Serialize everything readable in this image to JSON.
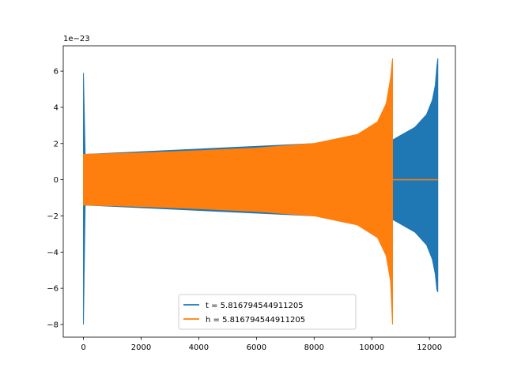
{
  "chart_data": {
    "type": "line",
    "title": "",
    "xlabel": "",
    "ylabel": "",
    "scale_offset_label": "1e−23",
    "xlim": [
      -700,
      12900
    ],
    "ylim": [
      -8.7,
      7.4
    ],
    "xticks": [
      0,
      2000,
      4000,
      6000,
      8000,
      10000,
      12000
    ],
    "xtick_labels": [
      "0",
      "2000",
      "4000",
      "6000",
      "8000",
      "10000",
      "12000"
    ],
    "yticks": [
      -8,
      -6,
      -4,
      -2,
      0,
      2,
      4,
      6
    ],
    "ytick_labels": [
      "−8",
      "−6",
      "−4",
      "−2",
      "0",
      "2",
      "4",
      "6"
    ],
    "grid": false,
    "legend_position": "lower-center",
    "series": [
      {
        "name": "t = 5.816794544911205",
        "color": "#1f77b4",
        "envelope_upper": {
          "x": [
            0,
            60,
            10730,
            11000,
            11500,
            11900,
            12100,
            12200,
            12260,
            12290
          ],
          "y": [
            5.9,
            1.4,
            2.2,
            2.45,
            2.9,
            3.6,
            4.4,
            5.2,
            6.3,
            6.7
          ]
        },
        "envelope_lower": {
          "x": [
            0,
            60,
            10730,
            11000,
            11500,
            11900,
            12100,
            12200,
            12260,
            12290
          ],
          "y": [
            -8.0,
            -1.4,
            -2.2,
            -2.45,
            -2.9,
            -3.6,
            -4.4,
            -5.2,
            -6.1,
            -6.2
          ]
        }
      },
      {
        "name": "h = 5.816794544911205",
        "color": "#ff7f0e",
        "envelope_upper": {
          "x": [
            0,
            2000,
            4000,
            6000,
            8000,
            9500,
            10200,
            10500,
            10650,
            10720
          ],
          "y": [
            1.4,
            1.48,
            1.6,
            1.75,
            2.0,
            2.5,
            3.2,
            4.2,
            5.6,
            6.7
          ]
        },
        "envelope_lower": {
          "x": [
            0,
            2000,
            4000,
            6000,
            8000,
            9500,
            10200,
            10500,
            10650,
            10720
          ],
          "y": [
            -1.4,
            -1.48,
            -1.6,
            -1.75,
            -2.0,
            -2.5,
            -3.2,
            -4.2,
            -5.6,
            -8.0
          ]
        },
        "flat_tail": {
          "x": [
            10720,
            12290
          ],
          "y": [
            0,
            0
          ]
        }
      }
    ]
  }
}
